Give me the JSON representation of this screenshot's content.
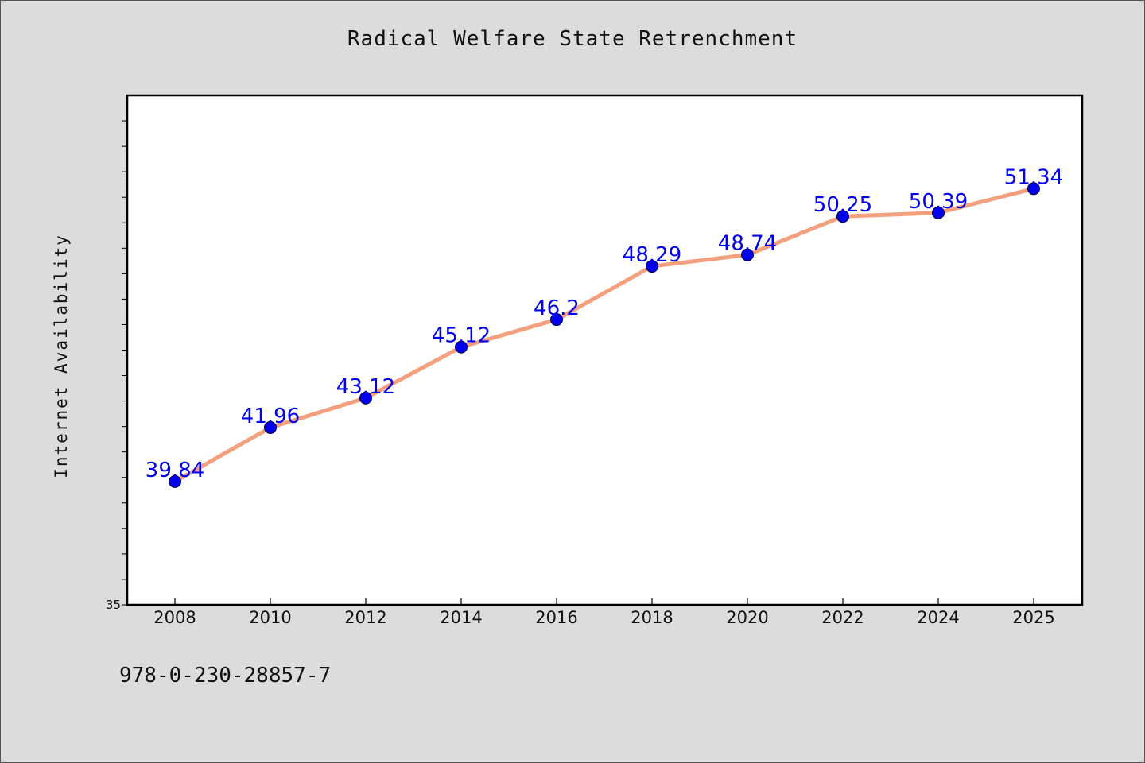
{
  "chart_data": {
    "type": "line",
    "title": "Radical Welfare State Retrenchment",
    "xlabel": "",
    "ylabel": "Internet Availability",
    "categories": [
      "2008",
      "2010",
      "2012",
      "2014",
      "2016",
      "2018",
      "2020",
      "2022",
      "2024",
      "2025"
    ],
    "series": [
      {
        "values": [
          39.84,
          41.96,
          43.12,
          45.12,
          46.2,
          48.29,
          48.74,
          50.25,
          50.39,
          51.34
        ],
        "data_labels": [
          "39.84",
          "41.96",
          "43.12",
          "45.12",
          "46.2",
          "48.29",
          "48.74",
          "50.25",
          "50.39",
          "51.34"
        ],
        "line_color": "#f4a07e",
        "marker_color": "#0000ee"
      }
    ],
    "ylim": [
      35,
      55
    ],
    "y_tick_labels": [
      "35"
    ],
    "grid": false,
    "legend": "none"
  },
  "footnote": "978-0-230-28857-7",
  "colors": {
    "background": "#dcdcdc",
    "plot_background": "#ffffff",
    "label_text": "#0000ee"
  }
}
